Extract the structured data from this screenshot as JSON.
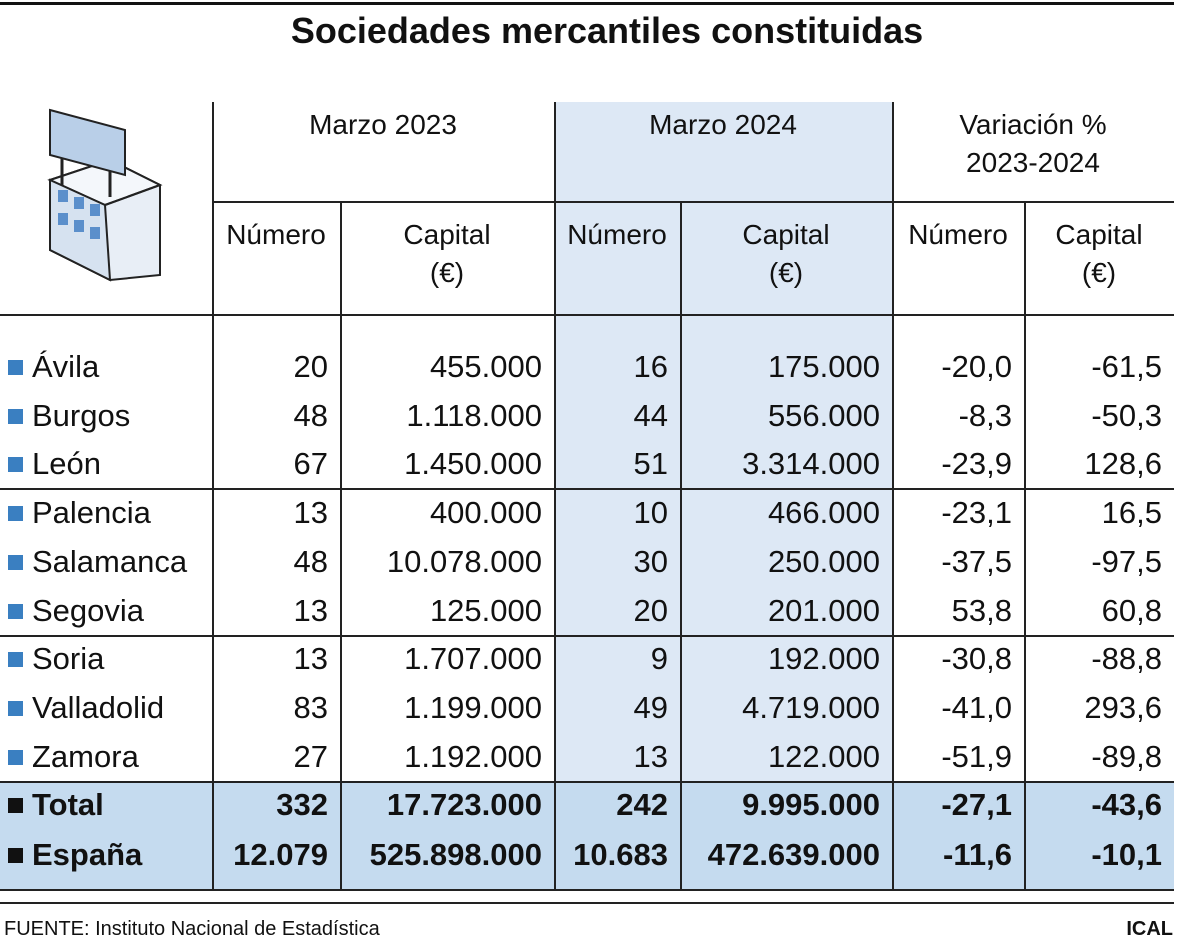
{
  "header": {
    "title": "Sociedades mercantiles constituidas"
  },
  "table": {
    "column_groups": [
      "Marzo 2023",
      "Marzo 2024",
      "Variación %\n2023-2024"
    ],
    "subheaders": [
      "Número",
      "Capital\n(€)",
      "Número",
      "Capital\n(€)",
      "Número",
      "Capital\n(€)"
    ],
    "rows": [
      [
        "Ávila",
        "20",
        "455.000",
        "16",
        "175.000",
        "-20,0",
        "-61,5"
      ],
      [
        "Burgos",
        "48",
        "1.118.000",
        "44",
        "556.000",
        "-8,3",
        "-50,3"
      ],
      [
        "León",
        "67",
        "1.450.000",
        "51",
        "3.314.000",
        "-23,9",
        "128,6"
      ],
      [
        "Palencia",
        "13",
        "400.000",
        "10",
        "466.000",
        "-23,1",
        "16,5"
      ],
      [
        "Salamanca",
        "48",
        "10.078.000",
        "30",
        "250.000",
        "-37,5",
        "-97,5"
      ],
      [
        "Segovia",
        "13",
        "125.000",
        "20",
        "201.000",
        "53,8",
        "60,8"
      ],
      [
        "Soria",
        "13",
        "1.707.000",
        "9",
        "192.000",
        "-30,8",
        "-88,8"
      ],
      [
        "Valladolid",
        "83",
        "1.199.000",
        "49",
        "4.719.000",
        "-41,0",
        "293,6"
      ],
      [
        "Zamora",
        "27",
        "1.192.000",
        "13",
        "122.000",
        "-51,9",
        "-89,8"
      ]
    ],
    "totals": [
      [
        "Total",
        "332",
        "17.723.000",
        "242",
        "9.995.000",
        "-27,1",
        "-43,6"
      ],
      [
        "España",
        "12.079",
        "525.898.000",
        "10.683",
        "472.639.000",
        "-11,6",
        "-10,1"
      ]
    ]
  },
  "footer": {
    "source": "FUENTE: Instituto Nacional de Estadística",
    "brand": "ICAL"
  }
}
